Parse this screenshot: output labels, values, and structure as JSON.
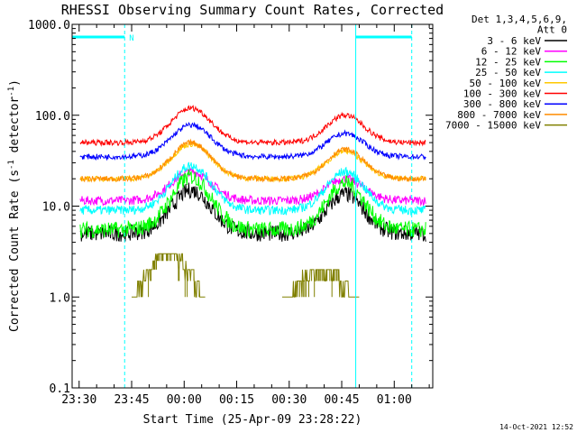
{
  "chart_data": {
    "type": "line",
    "title": "RHESSI Observing Summary Count Rates, Corrected",
    "xlabel": "Start Time (25-Apr-09 23:28:22)",
    "ylabel_main": "Corrected Count Rate (s",
    "ylabel_sup1": "-1",
    "ylabel_mid": " detector",
    "ylabel_sup2": "-1",
    "ylabel_end": ")",
    "yscale": "log",
    "ylim": [
      0.1,
      1000
    ],
    "xlim_minutes": [
      -2,
      101
    ],
    "x_ticks": [
      {
        "label": "23:30",
        "min": 0
      },
      {
        "label": "23:45",
        "min": 15
      },
      {
        "label": "00:00",
        "min": 30
      },
      {
        "label": "00:15",
        "min": 45
      },
      {
        "label": "00:30",
        "min": 60
      },
      {
        "label": "00:45",
        "min": 75
      },
      {
        "label": "01:00",
        "min": 90
      }
    ],
    "y_ticks": [
      {
        "label": "1000.0",
        "value": 1000
      },
      {
        "label": "100.0",
        "value": 100
      },
      {
        "label": "10.0",
        "value": 10
      },
      {
        "label": "1.0",
        "value": 1
      },
      {
        "label": "0.1",
        "value": 0.1
      }
    ],
    "legend_header": [
      "Det 1,3,4,5,6,9,",
      "Att 0"
    ],
    "legend": [
      {
        "label": "3 - 6 keV",
        "color": "#000000"
      },
      {
        "label": "6 - 12 keV",
        "color": "#ff00ff"
      },
      {
        "label": "12 - 25 keV",
        "color": "#00ff00"
      },
      {
        "label": "25 - 50 keV",
        "color": "#00ffff"
      },
      {
        "label": "50 - 100 keV",
        "color": "#ffc800"
      },
      {
        "label": "100 - 300 keV",
        "color": "#ff0000"
      },
      {
        "label": "300 - 800 keV",
        "color": "#0000ff"
      },
      {
        "label": "800 - 7000 keV",
        "color": "#ff8c00"
      },
      {
        "label": "7000 - 15000 keV",
        "color": "#808000"
      }
    ],
    "night_segments": [
      [
        -2,
        13
      ],
      [
        79,
        95
      ]
    ],
    "night_flag_label": "N",
    "vertical_lines": [
      {
        "min": -2,
        "style": "solid"
      },
      {
        "min": 13,
        "style": "dashed"
      },
      {
        "min": 79,
        "style": "solid"
      },
      {
        "min": 95,
        "style": "dashed"
      }
    ],
    "series": [
      {
        "color": "#ff00ff",
        "base": 11.5,
        "peak1": 24,
        "peak2": 20
      },
      {
        "color": "#000000",
        "base": 5,
        "peak1": 15,
        "peak2": 13.5
      },
      {
        "color": "#00ff00",
        "base": 5.5,
        "peak1": 21,
        "peak2": 18
      },
      {
        "color": "#00ffff",
        "base": 9,
        "peak1": 28,
        "peak2": 24
      },
      {
        "color": "#ffc800",
        "base": 20,
        "peak1": 48,
        "peak2": 40
      },
      {
        "color": "#ff8c00",
        "base": 20,
        "peak1": 50,
        "peak2": 42
      },
      {
        "color": "#0000ff",
        "base": 35,
        "peak1": 78,
        "peak2": 63
      },
      {
        "color": "#ff0000",
        "base": 50,
        "peak1": 120,
        "peak2": 100
      }
    ],
    "peak_minutes": [
      32,
      76
    ],
    "olive_blocks": [
      {
        "x": [
          15,
          36
        ],
        "levels": [
          1,
          1.5,
          2,
          2.5,
          3
        ]
      },
      {
        "x": [
          58,
          80
        ],
        "levels": [
          1,
          1.5,
          2
        ]
      }
    ],
    "timestamp": "14-Oct-2021 12:52"
  }
}
